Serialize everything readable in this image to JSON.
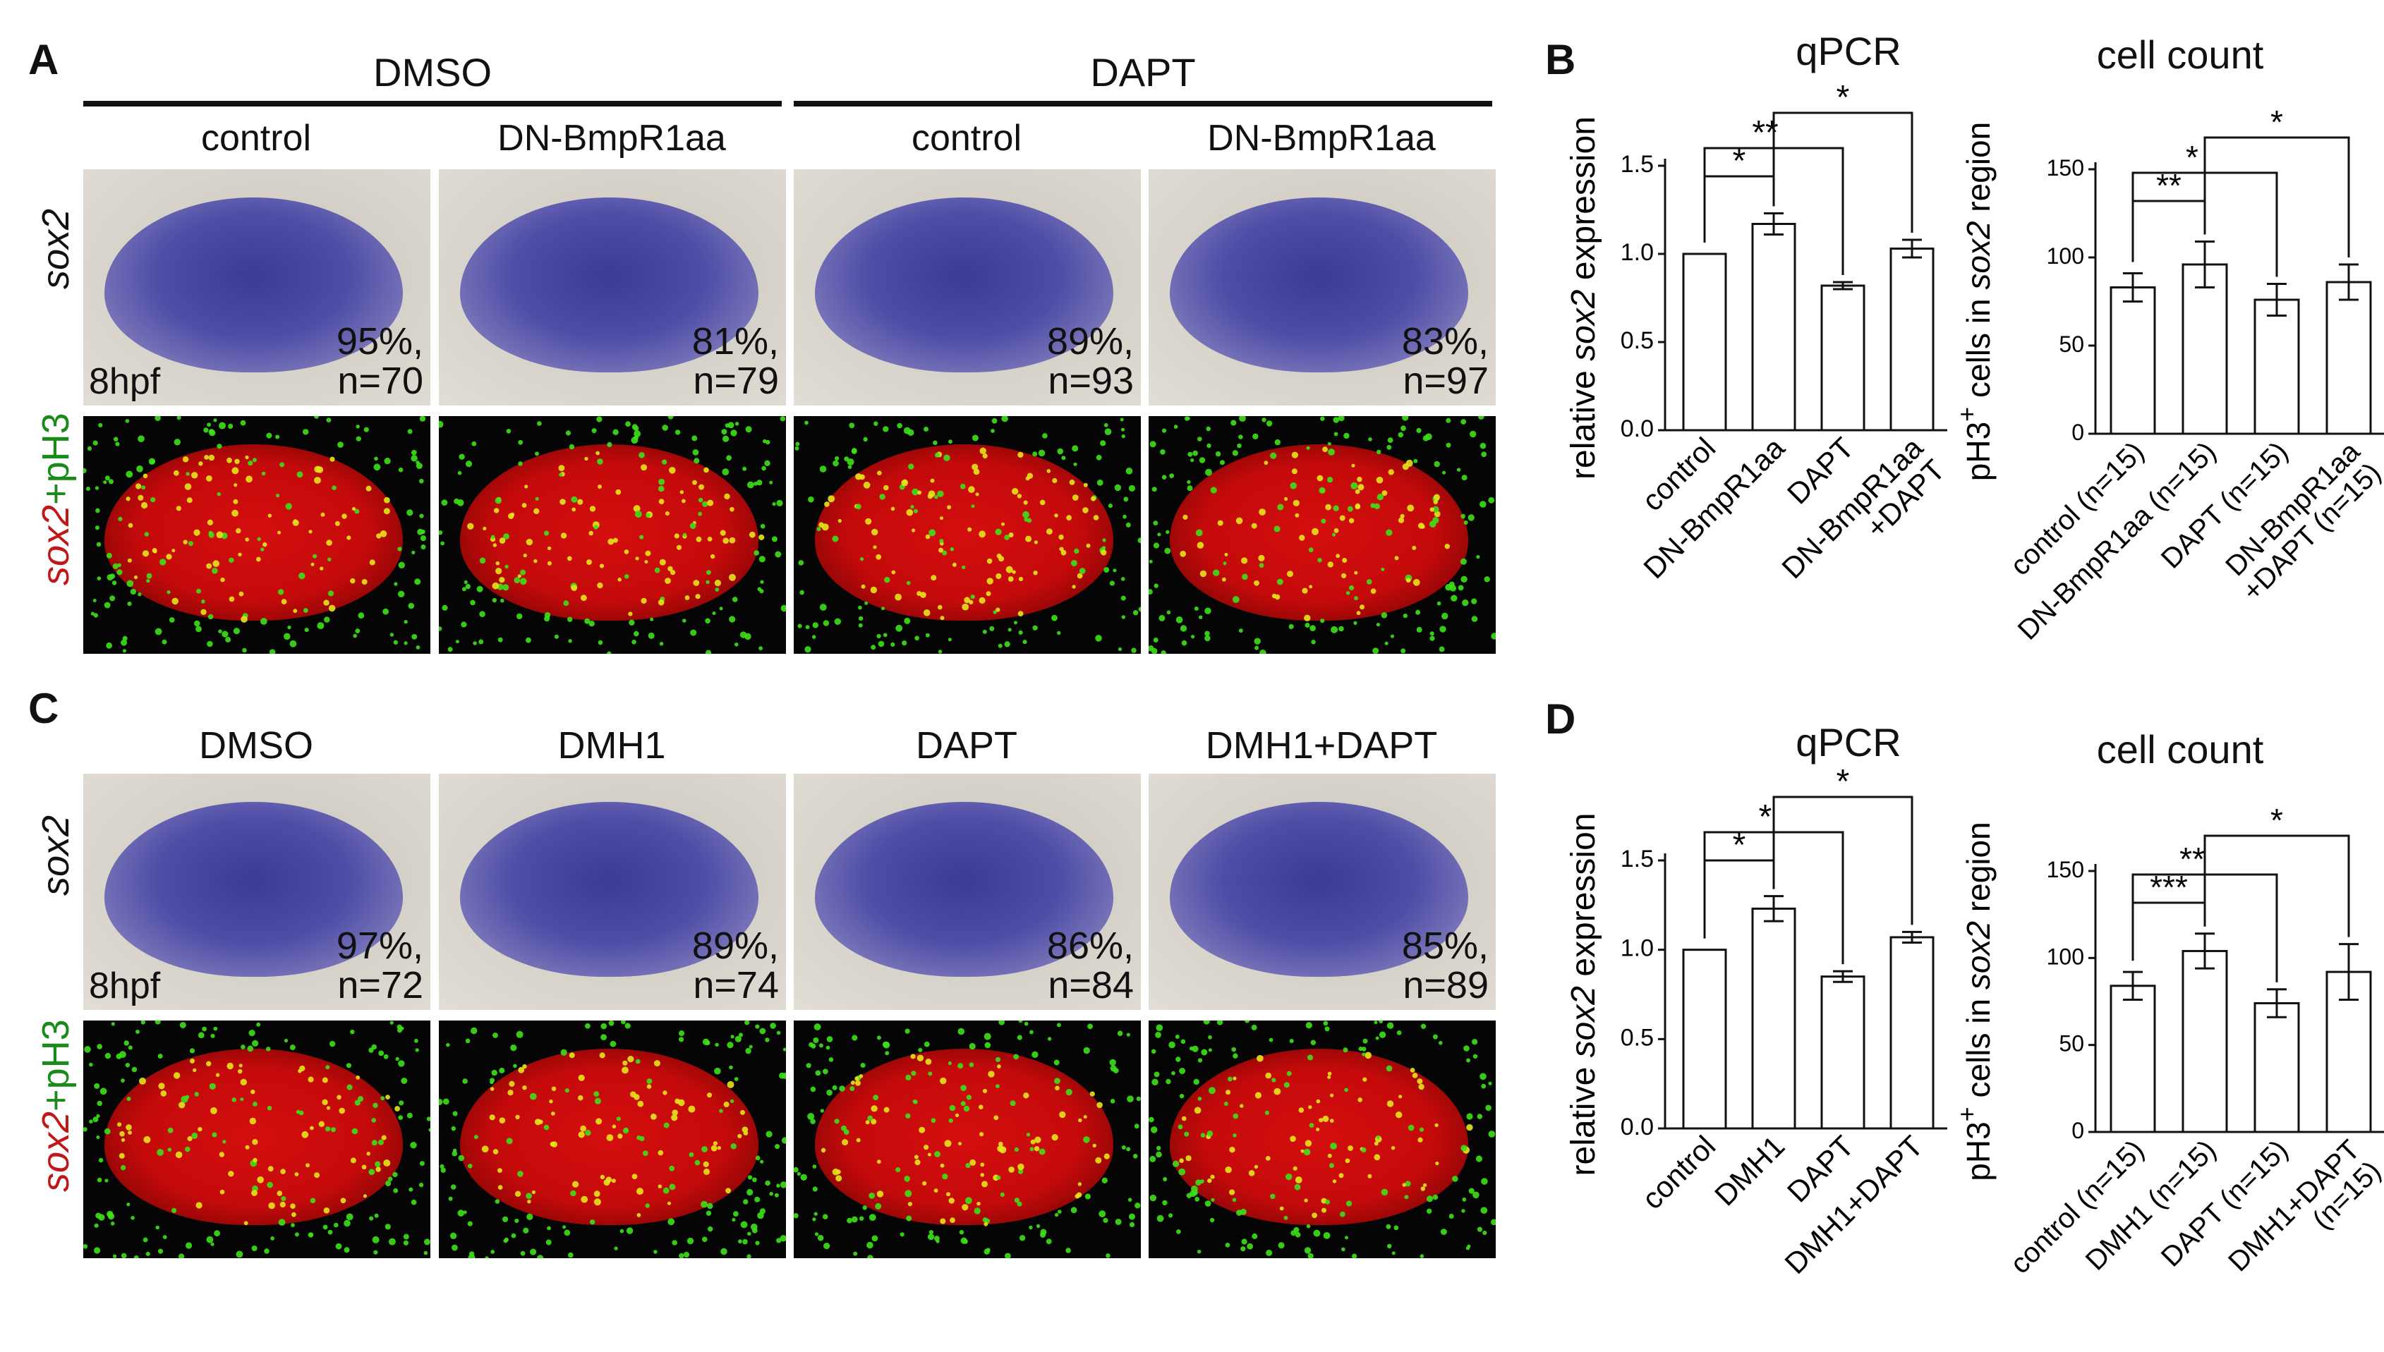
{
  "panels": {
    "A": {
      "letter": "A",
      "groups": [
        "DMSO",
        "DAPT"
      ],
      "columns": [
        "control",
        "DN-BmpR1aa",
        "control",
        "DN-BmpR1aa"
      ],
      "row1_label": "sox2",
      "row2_label_parts": [
        "sox2",
        "+pH3"
      ],
      "stage_label": "8hpf",
      "stats": [
        {
          "pct": "95%,",
          "n": "n=70"
        },
        {
          "pct": "81%,",
          "n": "n=79"
        },
        {
          "pct": "89%,",
          "n": "n=93"
        },
        {
          "pct": "83%,",
          "n": "n=97"
        }
      ]
    },
    "C": {
      "letter": "C",
      "columns": [
        "DMSO",
        "DMH1",
        "DAPT",
        "DMH1+DAPT"
      ],
      "row1_label": "sox2",
      "row2_label_parts": [
        "sox2",
        "+pH3"
      ],
      "stage_label": "8hpf",
      "stats": [
        {
          "pct": "97%,",
          "n": "n=72"
        },
        {
          "pct": "89%,",
          "n": "n=74"
        },
        {
          "pct": "86%,",
          "n": "n=84"
        },
        {
          "pct": "85%,",
          "n": "n=89"
        }
      ]
    },
    "B": {
      "letter": "B"
    },
    "D": {
      "letter": "D"
    }
  },
  "colors": {
    "ish_blob": "#4e4ca6",
    "fluor_red": "#d40e0e",
    "fluor_green": "#3de01a",
    "fluor_yellow": "#e6e61a"
  },
  "chart_data": [
    {
      "id": "B-qpcr",
      "type": "bar",
      "title": "qPCR",
      "ylabel_parts": [
        "relative ",
        "sox2",
        " expression"
      ],
      "categories": [
        [
          "control"
        ],
        [
          "DN-BmpR1aa"
        ],
        [
          "DAPT"
        ],
        [
          "DN-BmpR1aa",
          "+DAPT"
        ]
      ],
      "values": [
        1.0,
        1.17,
        0.82,
        1.03
      ],
      "errors": [
        0.0,
        0.06,
        0.02,
        0.05
      ],
      "ylim": [
        0,
        1.5
      ],
      "yticks": [
        "0.0",
        "0.5",
        "1.0",
        "1.5"
      ],
      "significance": [
        {
          "from": 0,
          "to": 1,
          "label": "*"
        },
        {
          "from": 0,
          "to": 2,
          "label": "**"
        },
        {
          "from": 1,
          "to": 3,
          "label": "*"
        }
      ]
    },
    {
      "id": "B-count",
      "type": "bar",
      "title": "cell count",
      "ylabel_parts": [
        "pH3",
        "+",
        " cells in ",
        "sox2",
        " region"
      ],
      "categories": [
        [
          "control (n=15)"
        ],
        [
          "DN-BmpR1aa (n=15)"
        ],
        [
          "DAPT (n=15)"
        ],
        [
          "DN-BmpR1aa",
          "+DAPT (n=15)"
        ]
      ],
      "values": [
        83,
        96,
        76,
        86
      ],
      "errors": [
        8,
        13,
        9,
        10
      ],
      "ylim": [
        0,
        150
      ],
      "yticks": [
        "0",
        "50",
        "100",
        "150"
      ],
      "significance": [
        {
          "from": 0,
          "to": 1,
          "label": "**"
        },
        {
          "from": 0,
          "to": 2,
          "label": "*"
        },
        {
          "from": 1,
          "to": 3,
          "label": "*"
        }
      ]
    },
    {
      "id": "D-qpcr",
      "type": "bar",
      "title": "qPCR",
      "ylabel_parts": [
        "relative ",
        "sox2",
        " expression"
      ],
      "categories": [
        [
          "control"
        ],
        [
          "DMH1"
        ],
        [
          "DAPT"
        ],
        [
          "DMH1+DAPT"
        ]
      ],
      "values": [
        1.0,
        1.23,
        0.85,
        1.07
      ],
      "errors": [
        0.0,
        0.07,
        0.03,
        0.03
      ],
      "ylim": [
        0,
        1.5
      ],
      "yticks": [
        "0.0",
        "0.5",
        "1.0",
        "1.5"
      ],
      "significance": [
        {
          "from": 0,
          "to": 1,
          "label": "*"
        },
        {
          "from": 0,
          "to": 2,
          "label": "*"
        },
        {
          "from": 1,
          "to": 3,
          "label": "*"
        }
      ]
    },
    {
      "id": "D-count",
      "type": "bar",
      "title": "cell count",
      "ylabel_parts": [
        "pH3",
        "+",
        " cells in ",
        "sox2",
        " region"
      ],
      "categories": [
        [
          "control (n=15)"
        ],
        [
          "DMH1 (n=15)"
        ],
        [
          "DAPT (n=15)"
        ],
        [
          "DMH1+DAPT",
          "(n=15)"
        ]
      ],
      "values": [
        84,
        104,
        74,
        92
      ],
      "errors": [
        8,
        10,
        8,
        16
      ],
      "ylim": [
        0,
        150
      ],
      "yticks": [
        "0",
        "50",
        "100",
        "150"
      ],
      "significance": [
        {
          "from": 0,
          "to": 1,
          "label": "***"
        },
        {
          "from": 0,
          "to": 2,
          "label": "**"
        },
        {
          "from": 1,
          "to": 3,
          "label": "*"
        }
      ]
    }
  ]
}
